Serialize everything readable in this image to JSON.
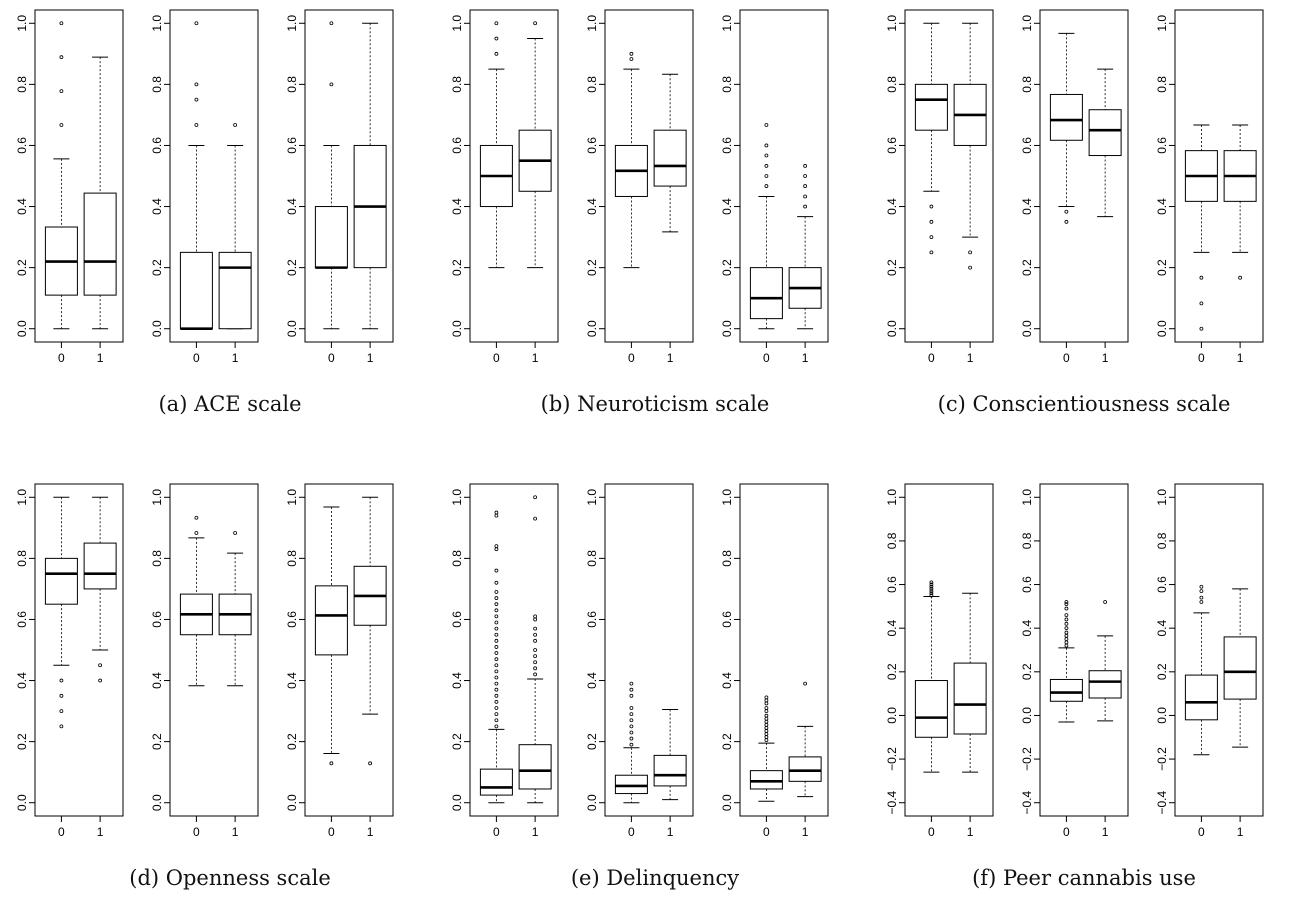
{
  "chart_data": [
    {
      "type": "boxplot",
      "caption": "(a) ACE scale",
      "panels": [
        {
          "ylim": [
            0,
            1
          ],
          "yticks": [
            "0.0",
            "0.2",
            "0.4",
            "0.6",
            "0.8",
            "1.0"
          ],
          "categories": [
            "0",
            "1"
          ],
          "boxes": [
            {
              "whisker_low": 0,
              "q1": 0.11,
              "median": 0.22,
              "q3": 0.333,
              "whisker_high": 0.556,
              "outliers": [
                0.667,
                0.778,
                0.889,
                1.0
              ]
            },
            {
              "whisker_low": 0,
              "q1": 0.11,
              "median": 0.22,
              "q3": 0.444,
              "whisker_high": 0.889,
              "outliers": []
            }
          ]
        },
        {
          "ylim": [
            0,
            1
          ],
          "yticks": [
            "0.0",
            "0.2",
            "0.4",
            "0.6",
            "0.8",
            "1.0"
          ],
          "categories": [
            "0",
            "1"
          ],
          "boxes": [
            {
              "whisker_low": 0,
              "q1": 0,
              "median": 0,
              "q3": 0.25,
              "whisker_high": 0.6,
              "outliers": [
                0.667,
                0.75,
                0.8,
                1.0
              ]
            },
            {
              "whisker_low": 0,
              "q1": 0,
              "median": 0.2,
              "q3": 0.25,
              "whisker_high": 0.6,
              "outliers": [
                0.667
              ]
            }
          ]
        },
        {
          "ylim": [
            0,
            1
          ],
          "yticks": [
            "0.0",
            "0.2",
            "0.4",
            "0.6",
            "0.8",
            "1.0"
          ],
          "categories": [
            "0",
            "1"
          ],
          "boxes": [
            {
              "whisker_low": 0,
              "q1": 0.2,
              "median": 0.2,
              "q3": 0.4,
              "whisker_high": 0.6,
              "outliers": [
                0.8,
                1.0
              ]
            },
            {
              "whisker_low": 0,
              "q1": 0.2,
              "median": 0.4,
              "q3": 0.6,
              "whisker_high": 1.0,
              "outliers": []
            }
          ]
        }
      ]
    },
    {
      "type": "boxplot",
      "caption": "(b) Neuroticism scale",
      "panels": [
        {
          "ylim": [
            0,
            1
          ],
          "yticks": [
            "0.0",
            "0.2",
            "0.4",
            "0.6",
            "0.8",
            "1.0"
          ],
          "categories": [
            "0",
            "1"
          ],
          "boxes": [
            {
              "whisker_low": 0.2,
              "q1": 0.4,
              "median": 0.5,
              "q3": 0.6,
              "whisker_high": 0.85,
              "outliers": [
                0.9,
                0.95,
                1.0
              ]
            },
            {
              "whisker_low": 0.2,
              "q1": 0.45,
              "median": 0.55,
              "q3": 0.65,
              "whisker_high": 0.95,
              "outliers": [
                1.0
              ]
            }
          ]
        },
        {
          "ylim": [
            0,
            1
          ],
          "yticks": [
            "0.0",
            "0.2",
            "0.4",
            "0.6",
            "0.8",
            "1.0"
          ],
          "categories": [
            "0",
            "1"
          ],
          "boxes": [
            {
              "whisker_low": 0.2,
              "q1": 0.433,
              "median": 0.517,
              "q3": 0.6,
              "whisker_high": 0.85,
              "outliers": [
                0.883,
                0.9
              ]
            },
            {
              "whisker_low": 0.317,
              "q1": 0.467,
              "median": 0.533,
              "q3": 0.65,
              "whisker_high": 0.833,
              "outliers": []
            }
          ]
        },
        {
          "ylim": [
            0,
            1
          ],
          "yticks": [
            "0.0",
            "0.2",
            "0.4",
            "0.6",
            "0.8",
            "1.0"
          ],
          "categories": [
            "0",
            "1"
          ],
          "boxes": [
            {
              "whisker_low": 0,
              "q1": 0.033,
              "median": 0.1,
              "q3": 0.2,
              "whisker_high": 0.433,
              "outliers": [
                0.467,
                0.5,
                0.533,
                0.567,
                0.6,
                0.667
              ]
            },
            {
              "whisker_low": 0,
              "q1": 0.067,
              "median": 0.133,
              "q3": 0.2,
              "whisker_high": 0.367,
              "outliers": [
                0.4,
                0.433,
                0.467,
                0.5,
                0.533
              ]
            }
          ]
        }
      ]
    },
    {
      "type": "boxplot",
      "caption": "(c) Conscientiousness scale",
      "panels": [
        {
          "ylim": [
            0,
            1
          ],
          "yticks": [
            "0.0",
            "0.2",
            "0.4",
            "0.6",
            "0.8",
            "1.0"
          ],
          "categories": [
            "0",
            "1"
          ],
          "boxes": [
            {
              "whisker_low": 0.45,
              "q1": 0.65,
              "median": 0.75,
              "q3": 0.8,
              "whisker_high": 1.0,
              "outliers": [
                0.25,
                0.3,
                0.35,
                0.4
              ]
            },
            {
              "whisker_low": 0.3,
              "q1": 0.6,
              "median": 0.7,
              "q3": 0.8,
              "whisker_high": 1.0,
              "outliers": [
                0.2,
                0.25
              ]
            }
          ]
        },
        {
          "ylim": [
            0,
            1
          ],
          "yticks": [
            "0.0",
            "0.2",
            "0.4",
            "0.6",
            "0.8",
            "1.0"
          ],
          "categories": [
            "0",
            "1"
          ],
          "boxes": [
            {
              "whisker_low": 0.4,
              "q1": 0.617,
              "median": 0.683,
              "q3": 0.767,
              "whisker_high": 0.967,
              "outliers": [
                0.35,
                0.383
              ]
            },
            {
              "whisker_low": 0.367,
              "q1": 0.567,
              "median": 0.65,
              "q3": 0.717,
              "whisker_high": 0.85,
              "outliers": []
            }
          ]
        },
        {
          "ylim": [
            0,
            1
          ],
          "yticks": [
            "0.0",
            "0.2",
            "0.4",
            "0.6",
            "0.8",
            "1.0"
          ],
          "categories": [
            "0",
            "1"
          ],
          "boxes": [
            {
              "whisker_low": 0.25,
              "q1": 0.417,
              "median": 0.5,
              "q3": 0.583,
              "whisker_high": 0.667,
              "outliers": [
                0,
                0.083,
                0.167
              ]
            },
            {
              "whisker_low": 0.25,
              "q1": 0.417,
              "median": 0.5,
              "q3": 0.583,
              "whisker_high": 0.667,
              "outliers": [
                0.167
              ]
            }
          ]
        }
      ]
    },
    {
      "type": "boxplot",
      "caption": "(d) Openness scale",
      "panels": [
        {
          "ylim": [
            0,
            1
          ],
          "yticks": [
            "0.0",
            "0.2",
            "0.4",
            "0.6",
            "0.8",
            "1.0"
          ],
          "categories": [
            "0",
            "1"
          ],
          "boxes": [
            {
              "whisker_low": 0.45,
              "q1": 0.65,
              "median": 0.75,
              "q3": 0.8,
              "whisker_high": 1.0,
              "outliers": [
                0.25,
                0.3,
                0.35,
                0.4
              ]
            },
            {
              "whisker_low": 0.5,
              "q1": 0.7,
              "median": 0.75,
              "q3": 0.85,
              "whisker_high": 1.0,
              "outliers": [
                0.4,
                0.45
              ]
            }
          ]
        },
        {
          "ylim": [
            0,
            1
          ],
          "yticks": [
            "0.0",
            "0.2",
            "0.4",
            "0.6",
            "0.8",
            "1.0"
          ],
          "categories": [
            "0",
            "1"
          ],
          "boxes": [
            {
              "whisker_low": 0.383,
              "q1": 0.55,
              "median": 0.617,
              "q3": 0.683,
              "whisker_high": 0.867,
              "outliers": [
                0.883,
                0.933
              ]
            },
            {
              "whisker_low": 0.383,
              "q1": 0.55,
              "median": 0.617,
              "q3": 0.683,
              "whisker_high": 0.817,
              "outliers": [
                0.883
              ]
            }
          ]
        },
        {
          "ylim": [
            0,
            1
          ],
          "yticks": [
            "0.0",
            "0.2",
            "0.4",
            "0.6",
            "0.8",
            "1.0"
          ],
          "categories": [
            "0",
            "1"
          ],
          "boxes": [
            {
              "whisker_low": 0.161,
              "q1": 0.484,
              "median": 0.613,
              "q3": 0.71,
              "whisker_high": 0.968,
              "outliers": [
                0.129
              ]
            },
            {
              "whisker_low": 0.29,
              "q1": 0.581,
              "median": 0.677,
              "q3": 0.774,
              "whisker_high": 1.0,
              "outliers": [
                0.129
              ]
            }
          ]
        }
      ]
    },
    {
      "type": "boxplot",
      "caption": "(e) Delinquency",
      "panels": [
        {
          "ylim": [
            0,
            1
          ],
          "yticks": [
            "0.0",
            "0.2",
            "0.4",
            "0.6",
            "0.8",
            "1.0"
          ],
          "categories": [
            "0",
            "1"
          ],
          "boxes": [
            {
              "whisker_low": 0,
              "q1": 0.025,
              "median": 0.05,
              "q3": 0.11,
              "whisker_high": 0.24,
              "outliers": [
                0.25,
                0.27,
                0.29,
                0.31,
                0.33,
                0.35,
                0.37,
                0.39,
                0.41,
                0.43,
                0.45,
                0.47,
                0.49,
                0.51,
                0.53,
                0.55,
                0.57,
                0.59,
                0.61,
                0.63,
                0.65,
                0.67,
                0.69,
                0.72,
                0.76,
                0.83,
                0.84,
                0.94,
                0.95
              ]
            },
            {
              "whisker_low": 0,
              "q1": 0.045,
              "median": 0.105,
              "q3": 0.19,
              "whisker_high": 0.405,
              "outliers": [
                0.42,
                0.44,
                0.46,
                0.48,
                0.5,
                0.53,
                0.55,
                0.57,
                0.6,
                0.61,
                0.93,
                1.0
              ]
            }
          ]
        },
        {
          "ylim": [
            0,
            1
          ],
          "yticks": [
            "0.0",
            "0.2",
            "0.4",
            "0.6",
            "0.8",
            "1.0"
          ],
          "categories": [
            "0",
            "1"
          ],
          "boxes": [
            {
              "whisker_low": 0,
              "q1": 0.03,
              "median": 0.055,
              "q3": 0.09,
              "whisker_high": 0.18,
              "outliers": [
                0.19,
                0.21,
                0.23,
                0.25,
                0.27,
                0.29,
                0.31,
                0.35,
                0.37,
                0.39
              ]
            },
            {
              "whisker_low": 0.01,
              "q1": 0.055,
              "median": 0.09,
              "q3": 0.155,
              "whisker_high": 0.305,
              "outliers": []
            }
          ]
        },
        {
          "ylim": [
            0,
            1
          ],
          "yticks": [
            "0.0",
            "0.2",
            "0.4",
            "0.6",
            "0.8",
            "1.0"
          ],
          "categories": [
            "0",
            "1"
          ],
          "boxes": [
            {
              "whisker_low": 0.005,
              "q1": 0.045,
              "median": 0.07,
              "q3": 0.105,
              "whisker_high": 0.195,
              "outliers": [
                0.205,
                0.215,
                0.225,
                0.235,
                0.245,
                0.255,
                0.265,
                0.275,
                0.285,
                0.3,
                0.31,
                0.325,
                0.335,
                0.345
              ]
            },
            {
              "whisker_low": 0.02,
              "q1": 0.07,
              "median": 0.105,
              "q3": 0.15,
              "whisker_high": 0.25,
              "outliers": [
                0.39
              ]
            }
          ]
        }
      ]
    },
    {
      "type": "boxplot",
      "caption": "(f) Peer cannabis use",
      "panels": [
        {
          "ylim": [
            -0.4,
            1.0
          ],
          "yticks": [
            "−0.4",
            "−0.2",
            "0.0",
            "0.2",
            "0.4",
            "0.6",
            "0.8",
            "1.0"
          ],
          "categories": [
            "0",
            "1"
          ],
          "boxes": [
            {
              "whisker_low": -0.26,
              "q1": -0.1,
              "median": -0.01,
              "q3": 0.16,
              "whisker_high": 0.545,
              "outliers": [
                0.55,
                0.56,
                0.57,
                0.58,
                0.59,
                0.6,
                0.61
              ]
            },
            {
              "whisker_low": -0.26,
              "q1": -0.085,
              "median": 0.05,
              "q3": 0.24,
              "whisker_high": 0.56,
              "outliers": []
            }
          ]
        },
        {
          "ylim": [
            -0.4,
            1.0
          ],
          "yticks": [
            "−0.4",
            "−0.2",
            "0.0",
            "0.2",
            "0.4",
            "0.6",
            "0.8",
            "1.0"
          ],
          "categories": [
            "0",
            "1"
          ],
          "boxes": [
            {
              "whisker_low": -0.03,
              "q1": 0.065,
              "median": 0.105,
              "q3": 0.165,
              "whisker_high": 0.31,
              "outliers": [
                0.32,
                0.335,
                0.35,
                0.365,
                0.38,
                0.4,
                0.42,
                0.44,
                0.46,
                0.49,
                0.51,
                0.52
              ]
            },
            {
              "whisker_low": -0.025,
              "q1": 0.08,
              "median": 0.155,
              "q3": 0.205,
              "whisker_high": 0.365,
              "outliers": [
                0.52
              ]
            }
          ]
        },
        {
          "ylim": [
            -0.4,
            1.0
          ],
          "yticks": [
            "−0.4",
            "−0.2",
            "0.0",
            "0.2",
            "0.4",
            "0.6",
            "0.8",
            "1.0"
          ],
          "categories": [
            "0",
            "1"
          ],
          "boxes": [
            {
              "whisker_low": -0.18,
              "q1": -0.02,
              "median": 0.06,
              "q3": 0.185,
              "whisker_high": 0.47,
              "outliers": [
                0.52,
                0.54,
                0.57,
                0.59
              ]
            },
            {
              "whisker_low": -0.145,
              "q1": 0.075,
              "median": 0.2,
              "q3": 0.36,
              "whisker_high": 0.58,
              "outliers": []
            }
          ]
        }
      ]
    }
  ]
}
